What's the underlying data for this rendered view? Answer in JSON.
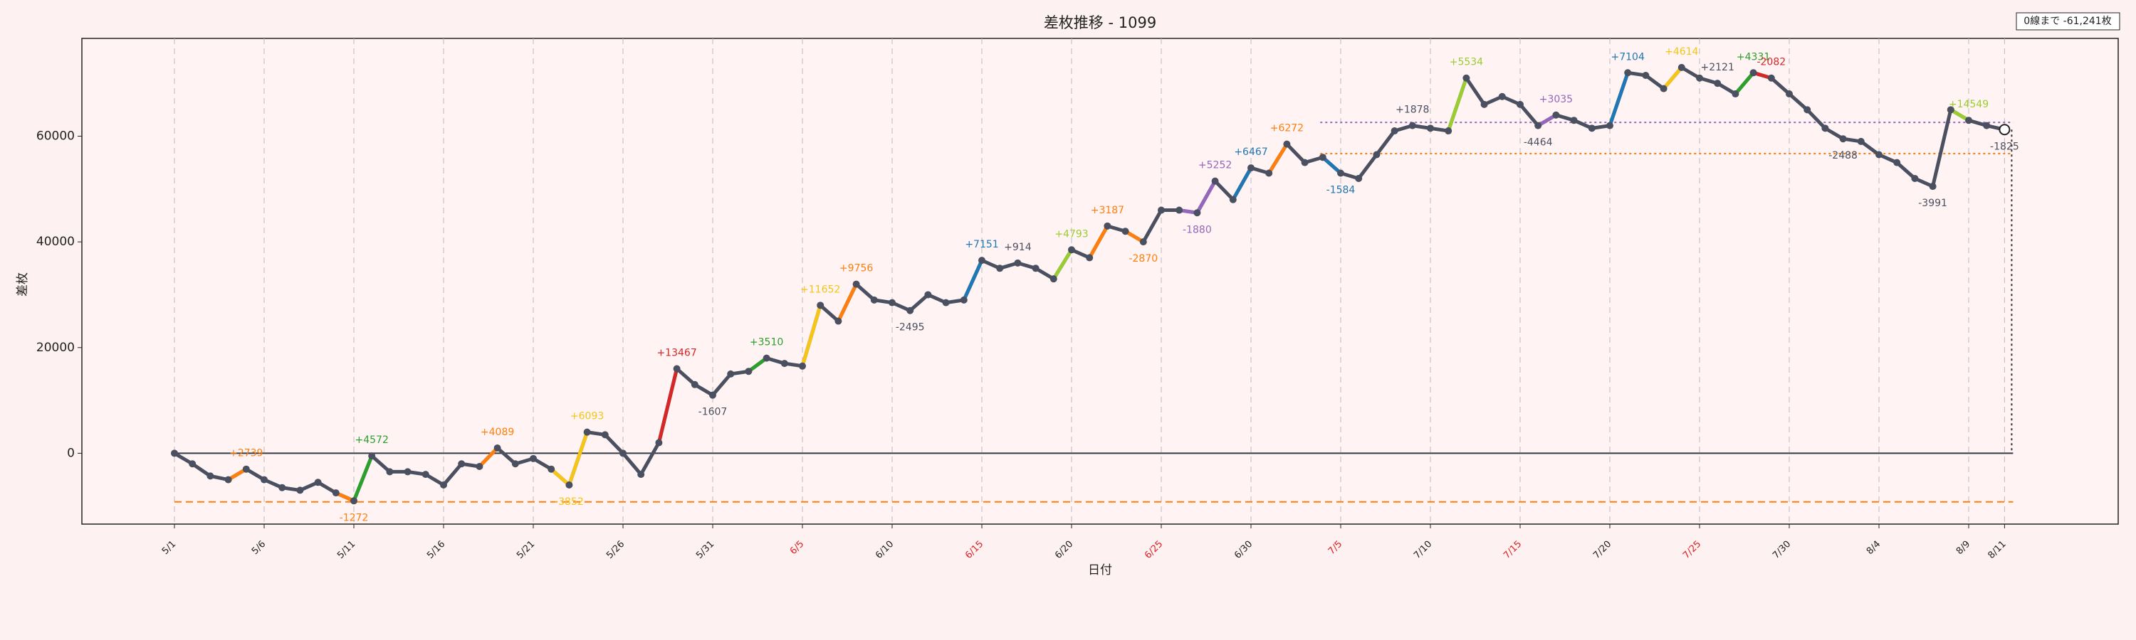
{
  "chart_data": {
    "type": "line",
    "title": "差枚推移 - 1099",
    "xlabel": "日付",
    "ylabel": "差枚",
    "note": "0線まで -61,241枚",
    "categories": [
      "5/1",
      null,
      null,
      null,
      null,
      "5/6",
      null,
      null,
      null,
      null,
      "5/11",
      null,
      null,
      null,
      null,
      "5/16",
      null,
      null,
      null,
      null,
      "5/21",
      null,
      null,
      null,
      null,
      "5/26",
      null,
      null,
      null,
      null,
      "5/31",
      null,
      null,
      null,
      null,
      "6/5",
      null,
      null,
      null,
      null,
      "6/10",
      null,
      null,
      null,
      null,
      "6/15",
      null,
      null,
      null,
      null,
      "6/20",
      null,
      null,
      null,
      null,
      "6/25",
      null,
      null,
      null,
      null,
      "6/30",
      null,
      null,
      null,
      null,
      "7/5",
      null,
      null,
      null,
      null,
      "7/10",
      null,
      null,
      null,
      null,
      "7/15",
      null,
      null,
      null,
      null,
      "7/20",
      null,
      null,
      null,
      null,
      "7/25",
      null,
      null,
      null,
      null,
      "7/30",
      null,
      null,
      null,
      null,
      "8/4",
      null,
      null,
      null,
      null,
      "8/9",
      null,
      "8/11"
    ],
    "xtick_highlight": [
      35,
      45,
      55,
      65,
      75,
      85
    ],
    "xtick_highlight_color": "#e02020",
    "series": [
      {
        "name": "差枚",
        "color": "#4a5060",
        "values": [
          0,
          -2000,
          -4300,
          -5000,
          -3000,
          -5000,
          -6500,
          -7000,
          -5500,
          -7500,
          -9000,
          -500,
          -3500,
          -3500,
          -4000,
          -6000,
          -2000,
          -2500,
          1000,
          -2000,
          -1000,
          -3000,
          -6000,
          4000,
          3500,
          0,
          -4000,
          2000,
          16000,
          13000,
          11000,
          15000,
          15500,
          18000,
          17000,
          16500,
          28000,
          25000,
          32000,
          29000,
          28500,
          27000,
          30000,
          28500,
          29000,
          36500,
          35000,
          36000,
          35000,
          33000,
          38500,
          37000,
          43000,
          42000,
          40000,
          46000,
          46000,
          45500,
          51500,
          48000,
          54000,
          53000,
          58500,
          55000,
          56000,
          53000,
          52000,
          56500,
          61000,
          62000,
          61500,
          61000,
          71000,
          66000,
          67500,
          66000,
          62000,
          64000,
          63000,
          61500,
          62000,
          72000,
          71500,
          69000,
          73000,
          71000,
          70000,
          68000,
          72000,
          71000,
          68000,
          65000,
          61500,
          59500,
          59000,
          56500,
          55000,
          52000,
          50500,
          65000,
          63000,
          62000,
          61241
        ]
      }
    ],
    "annotations": [
      {
        "index": 4,
        "text": "+2739",
        "color": "#ff7f0e",
        "position": "above"
      },
      {
        "index": 10,
        "text": "-1272",
        "color": "#ff7f0e",
        "position": "below"
      },
      {
        "index": 11,
        "text": "+4572",
        "color": "#2ca02c",
        "position": "above"
      },
      {
        "index": 18,
        "text": "+4089",
        "color": "#ff7f0e",
        "position": "above"
      },
      {
        "index": 22,
        "text": "-3852",
        "color": "#f5c518",
        "position": "below"
      },
      {
        "index": 23,
        "text": "+6093",
        "color": "#f5c518",
        "position": "above"
      },
      {
        "index": 28,
        "text": "+13467",
        "color": "#d62728",
        "position": "above"
      },
      {
        "index": 30,
        "text": "-1607",
        "color": "#4a5060",
        "position": "below"
      },
      {
        "index": 33,
        "text": "+3510",
        "color": "#2ca02c",
        "position": "above"
      },
      {
        "index": 36,
        "text": "+11652",
        "color": "#f5c518",
        "position": "above"
      },
      {
        "index": 38,
        "text": "+9756",
        "color": "#ff7f0e",
        "position": "above"
      },
      {
        "index": 41,
        "text": "-2495",
        "color": "#4a5060",
        "position": "below"
      },
      {
        "index": 45,
        "text": "+7151",
        "color": "#1f77b4",
        "position": "above"
      },
      {
        "index": 47,
        "text": "+914",
        "color": "#4a5060",
        "position": "above"
      },
      {
        "index": 50,
        "text": "+4793",
        "color": "#9acd32",
        "position": "above"
      },
      {
        "index": 52,
        "text": "+3187",
        "color": "#ff7f0e",
        "position": "above"
      },
      {
        "index": 54,
        "text": "-2870",
        "color": "#ff7f0e",
        "position": "below"
      },
      {
        "index": 58,
        "text": "+5252",
        "color": "#9467bd",
        "position": "above"
      },
      {
        "index": 57,
        "text": "-1880",
        "color": "#9467bd",
        "position": "below"
      },
      {
        "index": 60,
        "text": "+6467",
        "color": "#1f77b4",
        "position": "above"
      },
      {
        "index": 62,
        "text": "+6272",
        "color": "#ff7f0e",
        "position": "above"
      },
      {
        "index": 65,
        "text": "-1584",
        "color": "#1f77b4",
        "position": "below"
      },
      {
        "index": 69,
        "text": "+1878",
        "color": "#4a5060",
        "position": "above"
      },
      {
        "index": 72,
        "text": "+5534",
        "color": "#9acd32",
        "position": "above"
      },
      {
        "index": 77,
        "text": "+3035",
        "color": "#9467bd",
        "position": "above"
      },
      {
        "index": 76,
        "text": "-4464",
        "color": "#4a5060",
        "position": "below"
      },
      {
        "index": 81,
        "text": "+7104",
        "color": "#1f77b4",
        "position": "above"
      },
      {
        "index": 84,
        "text": "+4614",
        "color": "#f5c518",
        "position": "above"
      },
      {
        "index": 86,
        "text": "+2121",
        "color": "#4a5060",
        "position": "above"
      },
      {
        "index": 88,
        "text": "+4331",
        "color": "#2ca02c",
        "position": "above"
      },
      {
        "index": 89,
        "text": "-2082",
        "color": "#d62728",
        "position": "above"
      },
      {
        "index": 93,
        "text": "-2488",
        "color": "#4a5060",
        "position": "below"
      },
      {
        "index": 98,
        "text": "-3991",
        "color": "#4a5060",
        "position": "below"
      },
      {
        "index": 100,
        "text": "+14549",
        "color": "#9acd32",
        "position": "above"
      },
      {
        "index": 102,
        "text": "-1825",
        "color": "#4a5060",
        "position": "below"
      }
    ],
    "hlines": [
      {
        "value": 0,
        "color": "#333a45",
        "style": "solid"
      },
      {
        "value": -9200,
        "color": "#ff7f0e",
        "style": "dashed"
      },
      {
        "value": 56700,
        "color": "#ff7f0e",
        "style": "dotted"
      },
      {
        "value": 62600,
        "color": "#9467bd",
        "style": "dotted"
      }
    ],
    "ylim": [
      -13400,
      78500
    ],
    "yticks": [
      0,
      20000,
      40000,
      60000
    ],
    "grid": true
  }
}
